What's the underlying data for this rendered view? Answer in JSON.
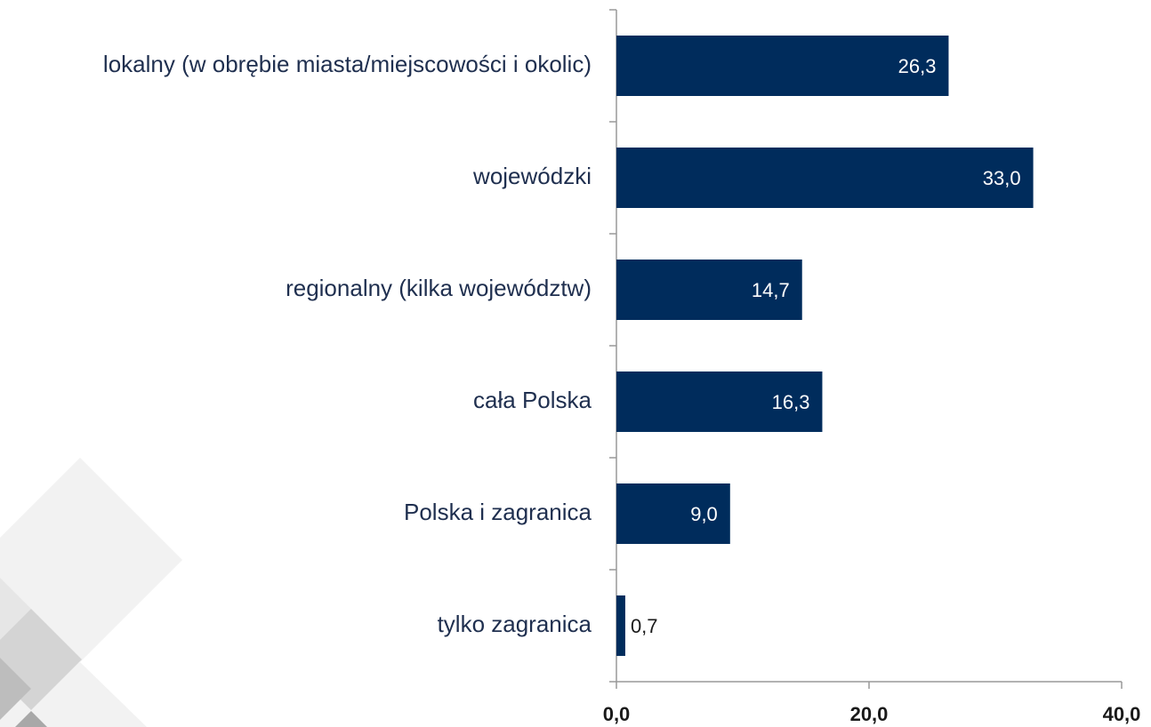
{
  "chart_data": {
    "type": "bar",
    "orientation": "horizontal",
    "categories": [
      "lokalny (w obrębie miasta/miejscowości i okolic)",
      "wojewódzki",
      "regionalny (kilka województw)",
      "cała Polska",
      "Polska i zagranica",
      "tylko zagranica"
    ],
    "values": [
      26.3,
      33.0,
      14.7,
      16.3,
      9.0,
      0.7
    ],
    "value_labels": [
      "26,3",
      "33,0",
      "14,7",
      "16,3",
      "9,0",
      "0,7"
    ],
    "color": "#002c5c",
    "xlim": [
      0,
      40
    ],
    "xticks": [
      {
        "value": 0,
        "label": "0,0"
      },
      {
        "value": 20,
        "label": "20,0"
      },
      {
        "value": 40,
        "label": "40,0"
      }
    ]
  }
}
